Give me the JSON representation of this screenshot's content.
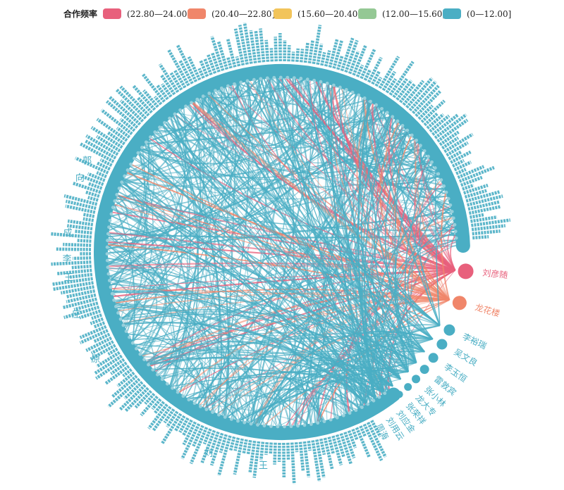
{
  "legend": {
    "title": "合作频率",
    "items": [
      {
        "label": "(22.80—24.00]",
        "color": "#e8607c"
      },
      {
        "label": "(20.40—22.80]",
        "color": "#f0866a"
      },
      {
        "label": "(15.60—20.40]",
        "color": "#f2c45a"
      },
      {
        "label": "(12.00—15.60]",
        "color": "#94c894"
      },
      {
        "label": "(0—12.00]",
        "color": "#4aaec4"
      }
    ]
  },
  "colors": {
    "base": "#4aaec4",
    "top": "#e8607c",
    "second": "#f0866a"
  },
  "nodes": [
    {
      "label": "刘彦随",
      "tier": 0
    },
    {
      "label": "龙花楼",
      "tier": 1
    },
    {
      "label": "李裕瑞",
      "tier": 4
    },
    {
      "label": "吴文良",
      "tier": 4
    },
    {
      "label": "李玉恒",
      "tier": 4
    },
    {
      "label": "雷敦宾",
      "tier": 4
    },
    {
      "label": "张小林",
      "tier": 4
    },
    {
      "label": "龙大专",
      "tier": 4
    },
    {
      "label": "张荣祥",
      "tier": 4
    },
    {
      "label": "刘应金",
      "tier": 4
    },
    {
      "label": "刘用云",
      "tier": 4
    },
    {
      "label": "周海",
      "tier": 4
    },
    {
      "label": "王",
      "tier": 4
    },
    {
      "label": "刘",
      "tier": 4
    },
    {
      "label": "郭",
      "tier": 4
    },
    {
      "label": "向",
      "tier": 4
    },
    {
      "label": "成",
      "tier": 4
    },
    {
      "label": "李",
      "tier": 4
    },
    {
      "label": "王",
      "tier": 4
    },
    {
      "label": "庄",
      "tier": 4
    },
    {
      "label": "原",
      "tier": 4
    }
  ]
}
